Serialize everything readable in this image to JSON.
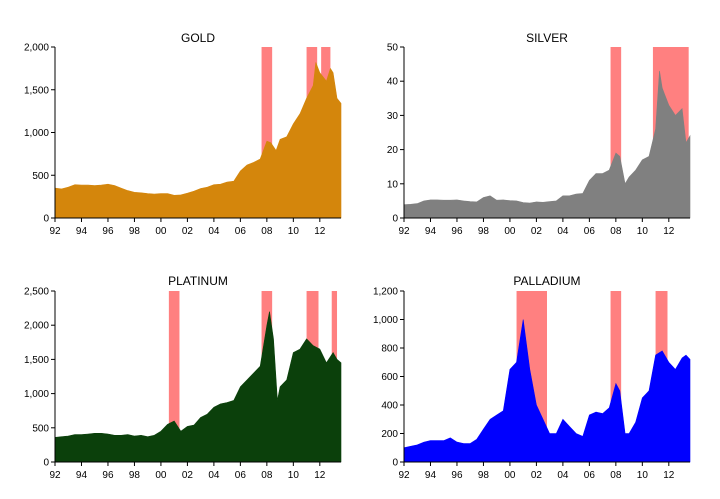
{
  "chart_data": [
    {
      "type": "area",
      "title": "GOLD",
      "color": "#d4860c",
      "x_range": [
        1992.0,
        2013.6
      ],
      "x_ticks": [
        "92",
        "94",
        "96",
        "98",
        "00",
        "02",
        "04",
        "06",
        "08",
        "10",
        "12"
      ],
      "ylim": [
        0,
        2000
      ],
      "y_ticks": [
        "0",
        "500",
        "1,000",
        "1,500",
        "2,000"
      ],
      "shaded_periods": [
        [
          2007.6,
          2008.4
        ],
        [
          2011.0,
          2011.8
        ],
        [
          2012.1,
          2012.8
        ]
      ],
      "series": [
        {
          "x": [
            1992.0,
            1992.5,
            1993.0,
            1993.5,
            1994.0,
            1994.5,
            1995.0,
            1995.5,
            1996.0,
            1996.5,
            1997.0,
            1997.5,
            1998.0,
            1998.5,
            1999.0,
            1999.5,
            2000.0,
            2000.5,
            2001.0,
            2001.5,
            2002.0,
            2002.5,
            2003.0,
            2003.5,
            2004.0,
            2004.5,
            2005.0,
            2005.5,
            2006.0,
            2006.5,
            2007.0,
            2007.5,
            2008.0,
            2008.3,
            2008.7,
            2009.0,
            2009.5,
            2010.0,
            2010.5,
            2011.0,
            2011.5,
            2011.7,
            2012.0,
            2012.5,
            2012.8,
            2013.0,
            2013.3,
            2013.6
          ],
          "y": [
            350,
            340,
            360,
            390,
            385,
            385,
            380,
            385,
            395,
            380,
            350,
            320,
            300,
            295,
            285,
            280,
            285,
            285,
            265,
            270,
            290,
            315,
            345,
            360,
            390,
            395,
            420,
            430,
            550,
            620,
            650,
            690,
            900,
            880,
            790,
            920,
            950,
            1100,
            1220,
            1400,
            1550,
            1820,
            1700,
            1600,
            1750,
            1700,
            1400,
            1340
          ]
        }
      ]
    },
    {
      "type": "area",
      "title": "SILVER",
      "color": "#808080",
      "x_range": [
        1992.0,
        2013.6
      ],
      "x_ticks": [
        "92",
        "94",
        "96",
        "98",
        "00",
        "02",
        "04",
        "06",
        "08",
        "10",
        "12"
      ],
      "ylim": [
        0,
        50
      ],
      "y_ticks": [
        "0",
        "10",
        "20",
        "30",
        "40",
        "50"
      ],
      "shaded_periods": [
        [
          2007.6,
          2008.4
        ],
        [
          2010.8,
          2013.5
        ]
      ],
      "series": [
        {
          "x": [
            1992.0,
            1992.5,
            1993.0,
            1993.5,
            1994.0,
            1994.5,
            1995.0,
            1995.5,
            1996.0,
            1996.5,
            1997.0,
            1997.5,
            1998.0,
            1998.5,
            1999.0,
            1999.5,
            2000.0,
            2000.5,
            2001.0,
            2001.5,
            2002.0,
            2002.5,
            2003.0,
            2003.5,
            2004.0,
            2004.5,
            2005.0,
            2005.5,
            2006.0,
            2006.5,
            2007.0,
            2007.5,
            2008.0,
            2008.3,
            2008.7,
            2009.0,
            2009.5,
            2010.0,
            2010.5,
            2011.0,
            2011.3,
            2011.5,
            2011.7,
            2012.0,
            2012.5,
            2013.0,
            2013.3,
            2013.6
          ],
          "y": [
            3.9,
            4.0,
            4.2,
            5.0,
            5.3,
            5.3,
            5.2,
            5.2,
            5.3,
            5.0,
            4.8,
            4.7,
            6.0,
            6.5,
            5.2,
            5.3,
            5.1,
            5.0,
            4.5,
            4.4,
            4.7,
            4.6,
            4.8,
            5.0,
            6.5,
            6.5,
            7.0,
            7.2,
            11.0,
            13.0,
            13.0,
            14.0,
            19.0,
            18.0,
            10.0,
            12.0,
            14.0,
            17.0,
            18.0,
            26.0,
            43.0,
            38.0,
            36.0,
            33.0,
            30.0,
            32.0,
            22.0,
            24.0
          ]
        }
      ]
    },
    {
      "type": "area",
      "title": "PLATINUM",
      "color": "#0b400b",
      "x_range": [
        1992.0,
        2013.6
      ],
      "x_ticks": [
        "92",
        "94",
        "96",
        "98",
        "00",
        "02",
        "04",
        "06",
        "08",
        "10",
        "12"
      ],
      "ylim": [
        0,
        2500
      ],
      "y_ticks": [
        "0",
        "500",
        "1,000",
        "1,500",
        "2,000",
        "2,500"
      ],
      "shaded_periods": [
        [
          2000.6,
          2001.4
        ],
        [
          2007.6,
          2008.4
        ],
        [
          2011.0,
          2011.9
        ],
        [
          2012.9,
          2013.3
        ]
      ],
      "series": [
        {
          "x": [
            1992.0,
            1992.5,
            1993.0,
            1993.5,
            1994.0,
            1994.5,
            1995.0,
            1995.5,
            1996.0,
            1996.5,
            1997.0,
            1997.5,
            1998.0,
            1998.5,
            1999.0,
            1999.5,
            2000.0,
            2000.5,
            2001.0,
            2001.5,
            2002.0,
            2002.5,
            2003.0,
            2003.5,
            2004.0,
            2004.5,
            2005.0,
            2005.5,
            2006.0,
            2006.5,
            2007.0,
            2007.5,
            2008.0,
            2008.2,
            2008.5,
            2008.8,
            2009.0,
            2009.5,
            2010.0,
            2010.5,
            2011.0,
            2011.5,
            2012.0,
            2012.5,
            2013.0,
            2013.3,
            2013.6
          ],
          "y": [
            360,
            370,
            380,
            400,
            400,
            410,
            420,
            420,
            410,
            390,
            390,
            400,
            380,
            390,
            370,
            390,
            450,
            550,
            600,
            450,
            520,
            540,
            650,
            700,
            800,
            850,
            870,
            900,
            1100,
            1200,
            1300,
            1400,
            2000,
            2200,
            1800,
            900,
            1100,
            1200,
            1600,
            1650,
            1800,
            1700,
            1650,
            1450,
            1600,
            1500,
            1450
          ]
        }
      ]
    },
    {
      "type": "area",
      "title": "PALLADIUM",
      "color": "#0000ff",
      "x_range": [
        1992.0,
        2013.6
      ],
      "x_ticks": [
        "92",
        "94",
        "96",
        "98",
        "00",
        "02",
        "04",
        "06",
        "08",
        "10",
        "12"
      ],
      "ylim": [
        0,
        1200
      ],
      "y_ticks": [
        "0",
        "200",
        "400",
        "600",
        "800",
        "1,000",
        "1,200"
      ],
      "shaded_periods": [
        [
          2000.5,
          2002.8
        ],
        [
          2007.6,
          2008.4
        ],
        [
          2011.0,
          2011.9
        ]
      ],
      "series": [
        {
          "x": [
            1992.0,
            1992.5,
            1993.0,
            1993.5,
            1994.0,
            1994.5,
            1995.0,
            1995.5,
            1996.0,
            1996.5,
            1997.0,
            1997.5,
            1998.0,
            1998.5,
            1999.0,
            1999.5,
            2000.0,
            2000.5,
            2001.0,
            2001.5,
            2002.0,
            2002.5,
            2003.0,
            2003.5,
            2004.0,
            2004.5,
            2005.0,
            2005.5,
            2006.0,
            2006.5,
            2007.0,
            2007.5,
            2008.0,
            2008.3,
            2008.7,
            2009.0,
            2009.5,
            2010.0,
            2010.5,
            2011.0,
            2011.5,
            2012.0,
            2012.5,
            2013.0,
            2013.3,
            2013.6
          ],
          "y": [
            100,
            110,
            120,
            140,
            150,
            150,
            150,
            170,
            140,
            130,
            130,
            160,
            230,
            300,
            330,
            360,
            650,
            700,
            1000,
            650,
            400,
            300,
            200,
            200,
            300,
            250,
            200,
            180,
            330,
            350,
            340,
            380,
            550,
            500,
            200,
            200,
            280,
            450,
            500,
            750,
            780,
            700,
            650,
            730,
            750,
            720
          ]
        }
      ]
    }
  ]
}
